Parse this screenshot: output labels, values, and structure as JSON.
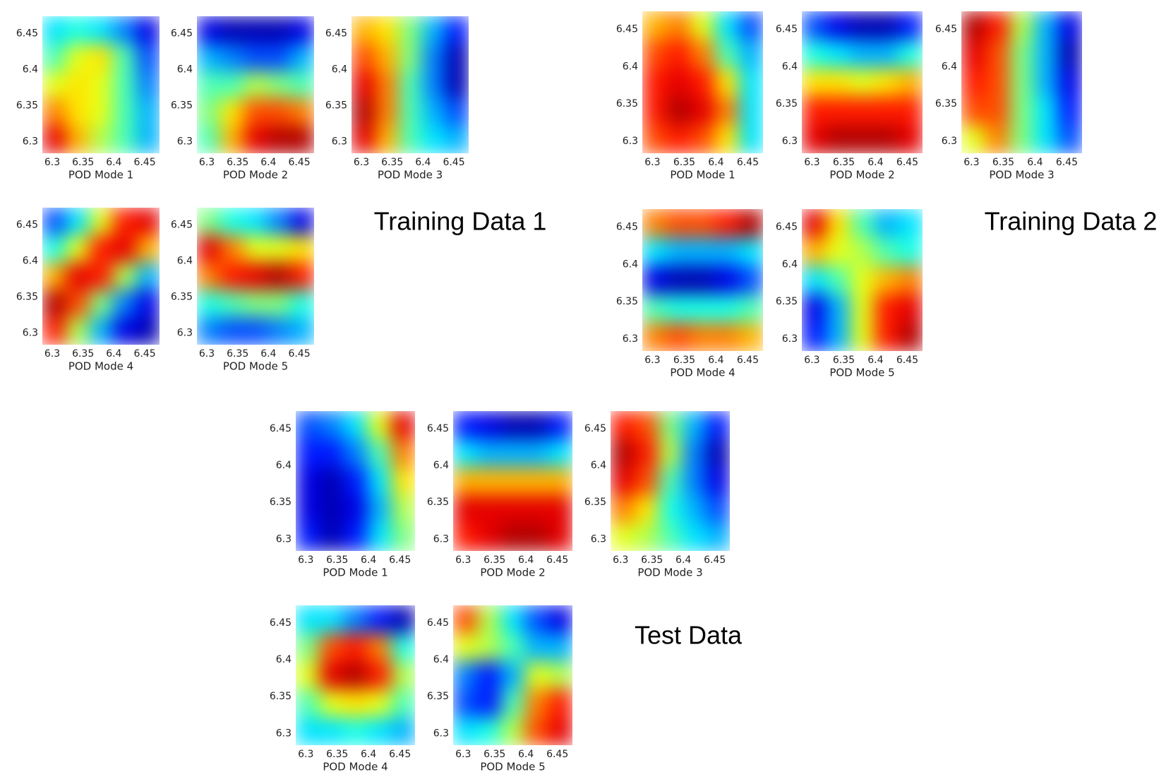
{
  "group_titles": [
    "Training Data 1",
    "Training Data 2",
    "Test Data"
  ],
  "chart_data": [
    {
      "type": "heatmap",
      "xlabel": "POD Mode 1",
      "colormap": "jet",
      "xlim": [
        6.284,
        6.474
      ],
      "ylim": [
        6.284,
        6.474
      ],
      "xticks": [
        6.3,
        6.35,
        6.4,
        6.45
      ],
      "yticks": [
        6.3,
        6.35,
        6.4,
        6.45
      ],
      "z": [
        [
          0.35,
          0.4,
          0.35,
          0.25,
          0.1
        ],
        [
          0.45,
          0.6,
          0.65,
          0.45,
          0.2
        ],
        [
          0.6,
          0.65,
          0.6,
          0.45,
          0.25
        ],
        [
          0.75,
          0.65,
          0.6,
          0.45,
          0.3
        ],
        [
          0.9,
          0.7,
          0.55,
          0.45,
          0.3
        ]
      ]
    },
    {
      "type": "heatmap",
      "xlabel": "POD Mode 2",
      "colormap": "jet",
      "xlim": [
        6.284,
        6.474
      ],
      "ylim": [
        6.284,
        6.474
      ],
      "xticks": [
        6.3,
        6.35,
        6.4,
        6.45
      ],
      "yticks": [
        6.3,
        6.35,
        6.4,
        6.45
      ],
      "z": [
        [
          0.1,
          0.05,
          0.05,
          0.05,
          0.1
        ],
        [
          0.3,
          0.25,
          0.2,
          0.2,
          0.3
        ],
        [
          0.45,
          0.45,
          0.55,
          0.5,
          0.45
        ],
        [
          0.5,
          0.65,
          0.8,
          0.8,
          0.75
        ],
        [
          0.45,
          0.7,
          0.9,
          0.95,
          0.95
        ]
      ]
    },
    {
      "type": "heatmap",
      "xlabel": "POD Mode 3",
      "colormap": "jet",
      "xlim": [
        6.284,
        6.474
      ],
      "ylim": [
        6.284,
        6.474
      ],
      "xticks": [
        6.3,
        6.35,
        6.4,
        6.45
      ],
      "yticks": [
        6.3,
        6.35,
        6.4,
        6.45
      ],
      "z": [
        [
          0.7,
          0.65,
          0.5,
          0.3,
          0.15
        ],
        [
          0.8,
          0.7,
          0.5,
          0.25,
          0.05
        ],
        [
          0.9,
          0.75,
          0.45,
          0.25,
          0.05
        ],
        [
          0.95,
          0.75,
          0.45,
          0.3,
          0.2
        ],
        [
          0.9,
          0.7,
          0.45,
          0.35,
          0.3
        ]
      ]
    },
    {
      "type": "heatmap",
      "xlabel": "POD Mode 4",
      "colormap": "jet",
      "xlim": [
        6.284,
        6.474
      ],
      "ylim": [
        6.284,
        6.474
      ],
      "xticks": [
        6.3,
        6.35,
        6.4,
        6.45
      ],
      "yticks": [
        6.3,
        6.35,
        6.4,
        6.45
      ],
      "z": [
        [
          0.2,
          0.35,
          0.6,
          0.85,
          0.9
        ],
        [
          0.4,
          0.6,
          0.85,
          0.9,
          0.7
        ],
        [
          0.7,
          0.9,
          0.85,
          0.55,
          0.3
        ],
        [
          0.95,
          0.8,
          0.5,
          0.25,
          0.1
        ],
        [
          0.85,
          0.55,
          0.3,
          0.1,
          0.05
        ]
      ]
    },
    {
      "type": "heatmap",
      "xlabel": "POD Mode 5",
      "colormap": "jet",
      "xlim": [
        6.284,
        6.474
      ],
      "ylim": [
        6.284,
        6.474
      ],
      "xticks": [
        6.3,
        6.35,
        6.4,
        6.45
      ],
      "yticks": [
        6.3,
        6.35,
        6.4,
        6.45
      ],
      "z": [
        [
          0.5,
          0.4,
          0.35,
          0.25,
          0.1
        ],
        [
          0.9,
          0.75,
          0.6,
          0.6,
          0.65
        ],
        [
          0.75,
          0.85,
          0.9,
          0.95,
          0.85
        ],
        [
          0.4,
          0.45,
          0.5,
          0.5,
          0.4
        ],
        [
          0.25,
          0.2,
          0.2,
          0.25,
          0.3
        ]
      ]
    },
    {
      "type": "heatmap",
      "xlabel": "POD Mode 1",
      "colormap": "jet",
      "xlim": [
        6.284,
        6.474
      ],
      "ylim": [
        6.284,
        6.474
      ],
      "xticks": [
        6.3,
        6.35,
        6.4,
        6.45
      ],
      "yticks": [
        6.3,
        6.35,
        6.4,
        6.45
      ],
      "z": [
        [
          0.7,
          0.75,
          0.6,
          0.35,
          0.2
        ],
        [
          0.8,
          0.85,
          0.75,
          0.45,
          0.3
        ],
        [
          0.85,
          0.9,
          0.85,
          0.65,
          0.35
        ],
        [
          0.85,
          0.95,
          0.9,
          0.75,
          0.35
        ],
        [
          0.8,
          0.85,
          0.8,
          0.65,
          0.35
        ]
      ]
    },
    {
      "type": "heatmap",
      "xlabel": "POD Mode 2",
      "colormap": "jet",
      "xlim": [
        6.284,
        6.474
      ],
      "ylim": [
        6.284,
        6.474
      ],
      "xticks": [
        6.3,
        6.35,
        6.4,
        6.45
      ],
      "yticks": [
        6.3,
        6.35,
        6.4,
        6.45
      ],
      "z": [
        [
          0.2,
          0.1,
          0.05,
          0.05,
          0.15
        ],
        [
          0.4,
          0.35,
          0.3,
          0.3,
          0.4
        ],
        [
          0.65,
          0.65,
          0.6,
          0.65,
          0.7
        ],
        [
          0.85,
          0.85,
          0.85,
          0.85,
          0.85
        ],
        [
          0.9,
          0.95,
          0.95,
          0.95,
          0.9
        ]
      ]
    },
    {
      "type": "heatmap",
      "xlabel": "POD Mode 3",
      "colormap": "jet",
      "xlim": [
        6.284,
        6.474
      ],
      "ylim": [
        6.284,
        6.474
      ],
      "xticks": [
        6.3,
        6.35,
        6.4,
        6.45
      ],
      "yticks": [
        6.3,
        6.35,
        6.4,
        6.45
      ],
      "z": [
        [
          0.95,
          0.85,
          0.55,
          0.3,
          0.1
        ],
        [
          0.9,
          0.8,
          0.5,
          0.3,
          0.05
        ],
        [
          0.85,
          0.8,
          0.5,
          0.3,
          0.1
        ],
        [
          0.8,
          0.8,
          0.5,
          0.35,
          0.15
        ],
        [
          0.6,
          0.75,
          0.5,
          0.35,
          0.2
        ]
      ]
    },
    {
      "type": "heatmap",
      "xlabel": "POD Mode 4",
      "colormap": "jet",
      "xlim": [
        6.284,
        6.474
      ],
      "ylim": [
        6.284,
        6.474
      ],
      "xticks": [
        6.3,
        6.35,
        6.4,
        6.45
      ],
      "yticks": [
        6.3,
        6.35,
        6.4,
        6.45
      ],
      "z": [
        [
          0.75,
          0.8,
          0.8,
          0.85,
          0.95
        ],
        [
          0.35,
          0.3,
          0.3,
          0.3,
          0.35
        ],
        [
          0.1,
          0.05,
          0.05,
          0.1,
          0.2
        ],
        [
          0.45,
          0.4,
          0.4,
          0.4,
          0.45
        ],
        [
          0.75,
          0.8,
          0.75,
          0.75,
          0.7
        ]
      ]
    },
    {
      "type": "heatmap",
      "xlabel": "POD Mode 5",
      "colormap": "jet",
      "xlim": [
        6.284,
        6.474
      ],
      "ylim": [
        6.284,
        6.474
      ],
      "xticks": [
        6.3,
        6.35,
        6.4,
        6.45
      ],
      "yticks": [
        6.3,
        6.35,
        6.4,
        6.45
      ],
      "z": [
        [
          0.9,
          0.65,
          0.45,
          0.3,
          0.35
        ],
        [
          0.7,
          0.6,
          0.55,
          0.45,
          0.4
        ],
        [
          0.35,
          0.45,
          0.6,
          0.7,
          0.75
        ],
        [
          0.1,
          0.3,
          0.6,
          0.85,
          0.9
        ],
        [
          0.15,
          0.3,
          0.6,
          0.85,
          0.95
        ]
      ]
    },
    {
      "type": "heatmap",
      "xlabel": "POD Mode 1",
      "colormap": "jet",
      "xlim": [
        6.284,
        6.474
      ],
      "ylim": [
        6.284,
        6.474
      ],
      "xticks": [
        6.3,
        6.35,
        6.4,
        6.45
      ],
      "yticks": [
        6.3,
        6.35,
        6.4,
        6.45
      ],
      "z": [
        [
          0.2,
          0.25,
          0.35,
          0.6,
          0.9
        ],
        [
          0.15,
          0.15,
          0.25,
          0.45,
          0.75
        ],
        [
          0.1,
          0.05,
          0.15,
          0.35,
          0.65
        ],
        [
          0.1,
          0.05,
          0.1,
          0.3,
          0.55
        ],
        [
          0.15,
          0.05,
          0.15,
          0.35,
          0.5
        ]
      ]
    },
    {
      "type": "heatmap",
      "xlabel": "POD Mode 2",
      "colormap": "jet",
      "xlim": [
        6.284,
        6.474
      ],
      "ylim": [
        6.284,
        6.474
      ],
      "xticks": [
        6.3,
        6.35,
        6.4,
        6.45
      ],
      "yticks": [
        6.3,
        6.35,
        6.4,
        6.45
      ],
      "z": [
        [
          0.15,
          0.1,
          0.05,
          0.05,
          0.15
        ],
        [
          0.35,
          0.3,
          0.3,
          0.3,
          0.35
        ],
        [
          0.7,
          0.7,
          0.7,
          0.7,
          0.7
        ],
        [
          0.9,
          0.9,
          0.9,
          0.9,
          0.9
        ],
        [
          0.85,
          0.9,
          0.95,
          0.95,
          0.9
        ]
      ]
    },
    {
      "type": "heatmap",
      "xlabel": "POD Mode 3",
      "colormap": "jet",
      "xlim": [
        6.284,
        6.474
      ],
      "ylim": [
        6.284,
        6.474
      ],
      "xticks": [
        6.3,
        6.35,
        6.4,
        6.45
      ],
      "yticks": [
        6.3,
        6.35,
        6.4,
        6.45
      ],
      "z": [
        [
          0.85,
          0.8,
          0.5,
          0.3,
          0.15
        ],
        [
          0.95,
          0.85,
          0.55,
          0.25,
          0.05
        ],
        [
          0.9,
          0.8,
          0.45,
          0.25,
          0.1
        ],
        [
          0.75,
          0.65,
          0.4,
          0.3,
          0.2
        ],
        [
          0.6,
          0.55,
          0.45,
          0.35,
          0.3
        ]
      ]
    },
    {
      "type": "heatmap",
      "xlabel": "POD Mode 4",
      "colormap": "jet",
      "xlim": [
        6.284,
        6.474
      ],
      "ylim": [
        6.284,
        6.474
      ],
      "xticks": [
        6.3,
        6.35,
        6.4,
        6.45
      ],
      "yticks": [
        6.3,
        6.35,
        6.4,
        6.45
      ],
      "z": [
        [
          0.35,
          0.35,
          0.25,
          0.15,
          0.05
        ],
        [
          0.5,
          0.8,
          0.85,
          0.75,
          0.4
        ],
        [
          0.6,
          0.9,
          0.95,
          0.85,
          0.55
        ],
        [
          0.45,
          0.6,
          0.65,
          0.6,
          0.45
        ],
        [
          0.35,
          0.35,
          0.4,
          0.35,
          0.3
        ]
      ]
    },
    {
      "type": "heatmap",
      "xlabel": "POD Mode 5",
      "colormap": "jet",
      "xlim": [
        6.284,
        6.474
      ],
      "ylim": [
        6.284,
        6.474
      ],
      "xticks": [
        6.3,
        6.35,
        6.4,
        6.45
      ],
      "yticks": [
        6.3,
        6.35,
        6.4,
        6.45
      ],
      "z": [
        [
          0.8,
          0.55,
          0.35,
          0.2,
          0.1
        ],
        [
          0.6,
          0.55,
          0.45,
          0.3,
          0.3
        ],
        [
          0.25,
          0.15,
          0.3,
          0.6,
          0.55
        ],
        [
          0.2,
          0.15,
          0.45,
          0.75,
          0.85
        ],
        [
          0.35,
          0.4,
          0.55,
          0.8,
          0.9
        ]
      ]
    }
  ]
}
